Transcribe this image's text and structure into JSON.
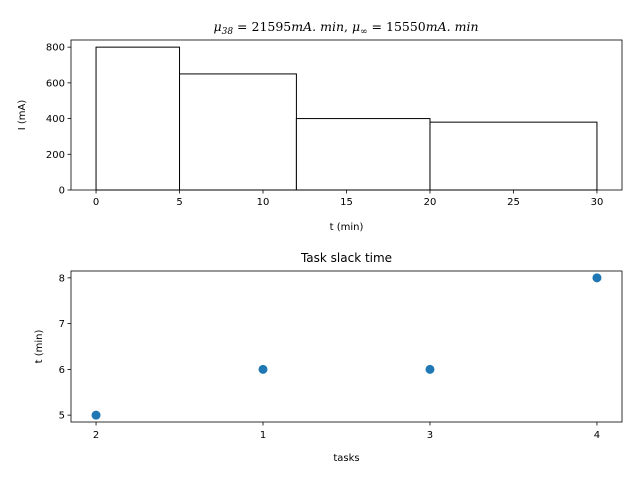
{
  "chart_data": [
    {
      "type": "bar",
      "title": "μ38 = 21595mA.min, μ∞ = 15550mA.min",
      "title_parts": {
        "mu_symbol": "μ",
        "sub1": "38",
        "val1": " = 21595",
        "unit1": "mA. min",
        "sep": ", ",
        "sub2": "∞",
        "val2": " = 15550",
        "unit2": "mA. min"
      },
      "xlabel": "t (min)",
      "ylabel": "I (mA)",
      "xlim": [
        -1.5,
        31.5
      ],
      "ylim": [
        0,
        840
      ],
      "xticks": [
        0,
        5,
        10,
        15,
        20,
        25,
        30
      ],
      "yticks": [
        0,
        200,
        400,
        600,
        800
      ],
      "bars": [
        {
          "start": 0,
          "end": 5,
          "value": 800
        },
        {
          "start": 5,
          "end": 12,
          "value": 650
        },
        {
          "start": 12,
          "end": 20,
          "value": 400
        },
        {
          "start": 20,
          "end": 30,
          "value": 380
        }
      ],
      "bar_fill": "#ffffff",
      "bar_edge": "#000000"
    },
    {
      "type": "scatter",
      "title": "Task slack time",
      "xlabel": "tasks",
      "ylabel": "t (min)",
      "categories": [
        "2",
        "1",
        "3",
        "4"
      ],
      "values": [
        5,
        6,
        6,
        8
      ],
      "ylim": [
        4.85,
        8.15
      ],
      "yticks": [
        5,
        6,
        7,
        8
      ],
      "marker_color": "#1f77b4"
    }
  ]
}
